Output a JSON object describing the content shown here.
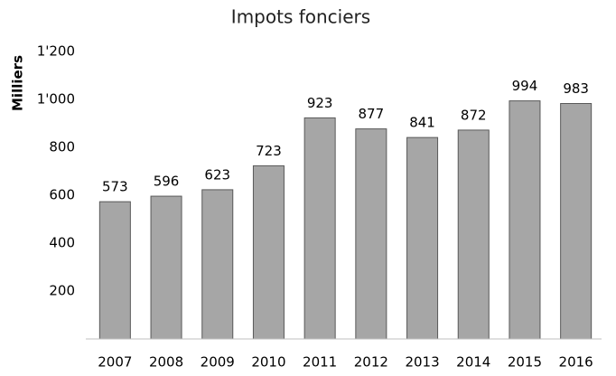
{
  "chart_data": {
    "type": "bar",
    "title": "Impots fonciers",
    "y_label": "Milliers",
    "categories": [
      "2007",
      "2008",
      "2009",
      "2010",
      "2011",
      "2012",
      "2013",
      "2014",
      "2015",
      "2016"
    ],
    "values": [
      573,
      596,
      623,
      723,
      923,
      877,
      841,
      872,
      994,
      983
    ],
    "color": "#a6a6a6",
    "ylim": [
      0,
      1200
    ],
    "yticks": [
      200,
      400,
      600,
      800,
      {
        "value": 1000,
        "label": "1'000"
      },
      {
        "value": 1200,
        "label": "1'200"
      }
    ],
    "grid": false
  }
}
